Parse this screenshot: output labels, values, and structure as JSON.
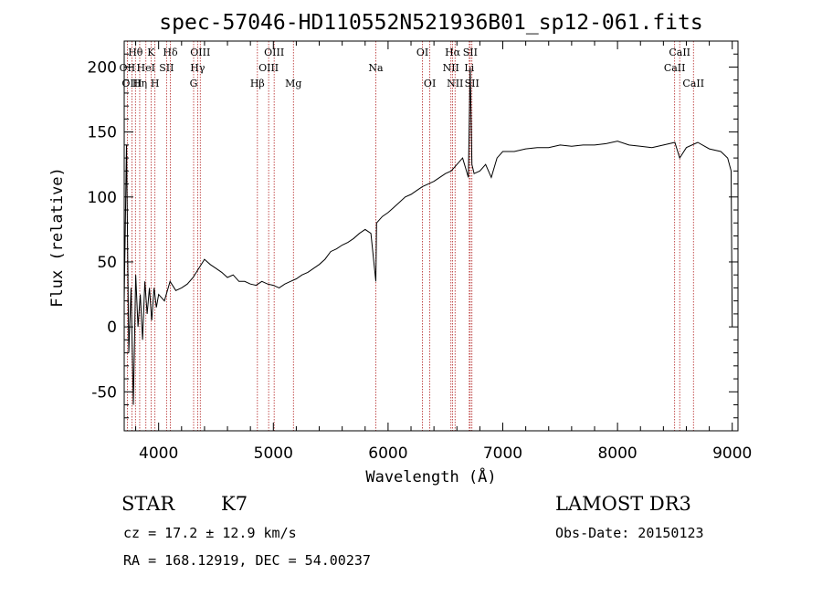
{
  "chart_data": {
    "type": "line",
    "title": "spec-57046-HD110552N521936B01_sp12-061.fits",
    "xlabel": "Wavelength (Å)",
    "ylabel": "Flux (relative)",
    "xlim": [
      3700,
      9050
    ],
    "ylim": [
      -80,
      220
    ],
    "xticks": [
      4000,
      5000,
      6000,
      7000,
      8000,
      9000
    ],
    "yticks": [
      -50,
      0,
      50,
      100,
      150,
      200
    ],
    "line_color": "#000000",
    "marker_color": "#b22222",
    "series": [
      {
        "x": [
          3700,
          3720,
          3740,
          3760,
          3780,
          3800,
          3820,
          3840,
          3860,
          3880,
          3900,
          3920,
          3940,
          3960,
          3980,
          4000,
          4050,
          4100,
          4150,
          4200,
          4250,
          4300,
          4350,
          4400,
          4450,
          4500,
          4550,
          4600,
          4650,
          4700,
          4750,
          4800,
          4850,
          4900,
          4950,
          5000,
          5050,
          5100,
          5150,
          5200,
          5250,
          5300,
          5350,
          5400,
          5450,
          5500,
          5550,
          5600,
          5650,
          5700,
          5750,
          5800,
          5850,
          5893,
          5900,
          5950,
          6000,
          6050,
          6100,
          6150,
          6200,
          6250,
          6300,
          6350,
          6400,
          6450,
          6500,
          6550,
          6600,
          6650,
          6700,
          6716,
          6731,
          6750,
          6800,
          6850,
          6900,
          6950,
          7000,
          7100,
          7200,
          7300,
          7400,
          7500,
          7600,
          7700,
          7800,
          7900,
          8000,
          8100,
          8200,
          8300,
          8400,
          8500,
          8542,
          8600,
          8700,
          8800,
          8900,
          8960,
          8990,
          9000
        ],
        "y": [
          20,
          140,
          -20,
          30,
          -60,
          40,
          0,
          25,
          -10,
          35,
          10,
          30,
          5,
          30,
          15,
          25,
          20,
          35,
          28,
          30,
          33,
          38,
          45,
          52,
          48,
          45,
          42,
          38,
          40,
          35,
          35,
          33,
          32,
          35,
          33,
          32,
          30,
          33,
          35,
          37,
          40,
          42,
          45,
          48,
          52,
          58,
          60,
          63,
          65,
          68,
          72,
          75,
          72,
          35,
          80,
          85,
          88,
          92,
          96,
          100,
          102,
          105,
          108,
          110,
          112,
          115,
          118,
          120,
          125,
          130,
          115,
          200,
          125,
          118,
          120,
          125,
          115,
          130,
          135,
          135,
          137,
          138,
          138,
          140,
          139,
          140,
          140,
          141,
          143,
          140,
          139,
          138,
          140,
          142,
          130,
          138,
          142,
          137,
          135,
          130,
          120,
          0
        ]
      }
    ],
    "spectral_lines": [
      {
        "label": "Hθ",
        "x": 3798,
        "row": 1
      },
      {
        "label": "OII",
        "x": 3727,
        "row": 2
      },
      {
        "label": "OIII",
        "x": 3767,
        "row": 3
      },
      {
        "label": "Hη",
        "x": 3835,
        "row": 3
      },
      {
        "label": "K",
        "x": 3934,
        "row": 1
      },
      {
        "label": "HeI",
        "x": 3889,
        "row": 2
      },
      {
        "label": "H",
        "x": 3968,
        "row": 3
      },
      {
        "label": "SII",
        "x": 4069,
        "row": 2
      },
      {
        "label": "Hδ",
        "x": 4102,
        "row": 1
      },
      {
        "label": "OIII",
        "x": 4363,
        "row": 1
      },
      {
        "label": "Hγ",
        "x": 4340,
        "row": 2
      },
      {
        "label": "G",
        "x": 4305,
        "row": 3
      },
      {
        "label": "Hβ",
        "x": 4861,
        "row": 3
      },
      {
        "label": "OIII",
        "x": 5007,
        "row": 1
      },
      {
        "label": "OIII",
        "x": 4959,
        "row": 2
      },
      {
        "label": "Mg",
        "x": 5175,
        "row": 3
      },
      {
        "label": "Na",
        "x": 5893,
        "row": 2
      },
      {
        "label": "OI",
        "x": 6300,
        "row": 1
      },
      {
        "label": "OI",
        "x": 6364,
        "row": 3
      },
      {
        "label": "Hα",
        "x": 6563,
        "row": 1
      },
      {
        "label": "NII",
        "x": 6548,
        "row": 2
      },
      {
        "label": "NII",
        "x": 6584,
        "row": 3
      },
      {
        "label": "SII",
        "x": 6716,
        "row": 1
      },
      {
        "label": "Li",
        "x": 6708,
        "row": 2
      },
      {
        "label": "SII",
        "x": 6731,
        "row": 3
      },
      {
        "label": "CaII",
        "x": 8542,
        "row": 1
      },
      {
        "label": "CaII",
        "x": 8498,
        "row": 2
      },
      {
        "label": "CaII",
        "x": 8662,
        "row": 3
      }
    ]
  },
  "info": {
    "object_class": "STAR",
    "subclass": "K7",
    "survey": "LAMOST DR3",
    "cz": "cz = 17.2 ± 12.9 km/s",
    "obs_date": "Obs-Date: 20150123",
    "coords": "RA = 168.12919, DEC =  54.00237"
  }
}
